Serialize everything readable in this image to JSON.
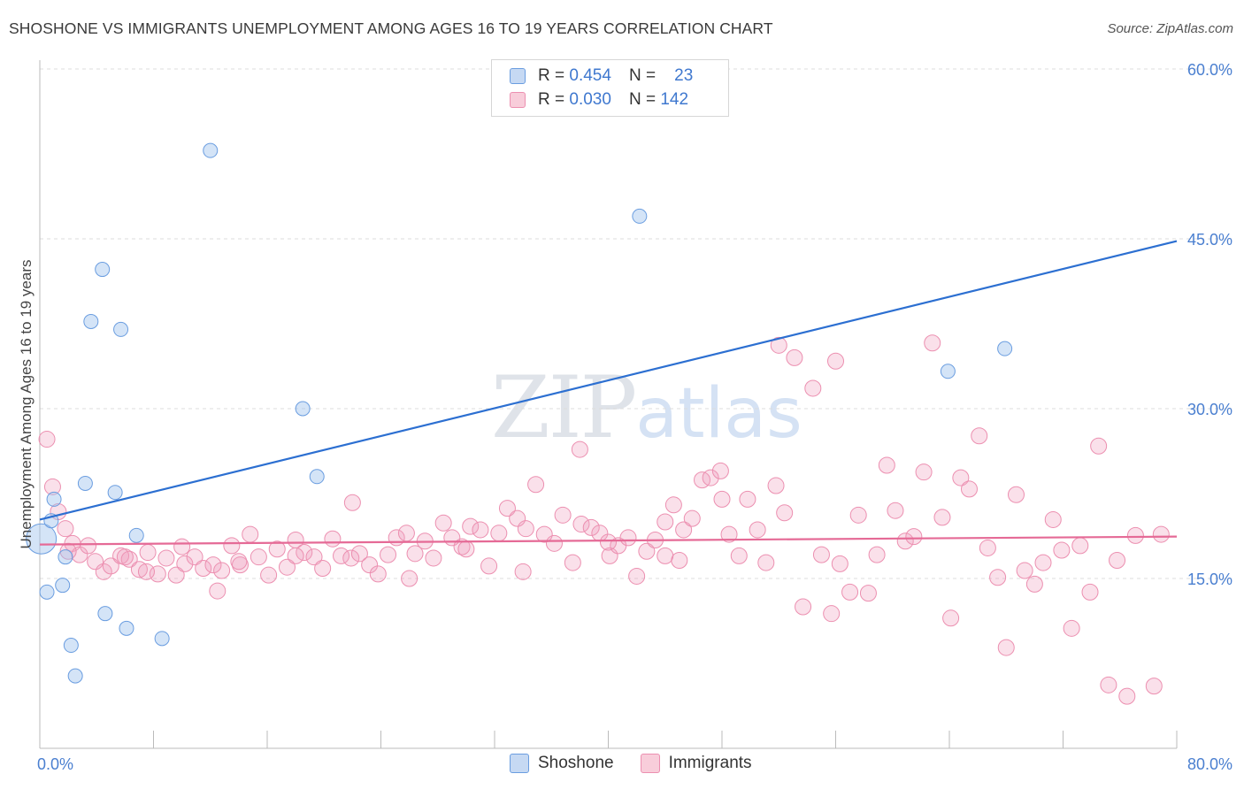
{
  "title": "SHOSHONE VS IMMIGRANTS UNEMPLOYMENT AMONG AGES 16 TO 19 YEARS CORRELATION CHART",
  "source": "Source: ZipAtlas.com",
  "watermark": {
    "zip": "ZIP",
    "atlas": "atlas"
  },
  "legend": {
    "rows": [
      {
        "r_label": "R =",
        "r_value": "0.454",
        "n_label": "N =",
        "n_value": "23"
      },
      {
        "r_label": "R =",
        "r_value": "0.030",
        "n_label": "N =",
        "n_value": "142"
      }
    ],
    "bottom": [
      "Shoshone",
      "Immigrants"
    ]
  },
  "chart_data": {
    "type": "scatter",
    "title": "SHOSHONE VS IMMIGRANTS UNEMPLOYMENT AMONG AGES 16 TO 19 YEARS CORRELATION CHART",
    "xlabel": "",
    "ylabel": "Unemployment Among Ages 16 to 19 years",
    "xlim": [
      0,
      80
    ],
    "ylim": [
      0,
      60
    ],
    "x_tick_labels": [
      "0.0%",
      "80.0%"
    ],
    "y_ticks": [
      15,
      30,
      45,
      60
    ],
    "y_tick_labels": [
      "15.0%",
      "30.0%",
      "45.0%",
      "60.0%"
    ],
    "colors": {
      "shoshone": "#6a9de0",
      "immigrants": "#ec8fb0",
      "shoshone_line": "#2c6fd1",
      "immigrants_line": "#e56a96"
    },
    "series": [
      {
        "name": "Shoshone",
        "trend": {
          "x": [
            0,
            80
          ],
          "y": [
            20.2,
            44.8
          ]
        },
        "points": [
          [
            0.1,
            18.5
          ],
          [
            0.5,
            13.8
          ],
          [
            1.0,
            22.0
          ],
          [
            1.6,
            14.4
          ],
          [
            1.8,
            16.9
          ],
          [
            2.2,
            9.1
          ],
          [
            2.5,
            6.4
          ],
          [
            3.2,
            23.4
          ],
          [
            4.4,
            42.3
          ],
          [
            3.6,
            37.7
          ],
          [
            5.7,
            37.0
          ],
          [
            4.6,
            11.9
          ],
          [
            5.3,
            22.6
          ],
          [
            6.1,
            10.6
          ],
          [
            6.8,
            18.8
          ],
          [
            8.6,
            9.7
          ],
          [
            12.0,
            52.8
          ],
          [
            18.5,
            30.0
          ],
          [
            19.5,
            24.0
          ],
          [
            0.8,
            20.1
          ],
          [
            42.2,
            47.0
          ],
          [
            63.9,
            33.3
          ],
          [
            67.9,
            35.3
          ]
        ]
      },
      {
        "name": "Immigrants",
        "trend": {
          "x": [
            0,
            80
          ],
          "y": [
            18.0,
            18.7
          ]
        },
        "points": [
          [
            0.5,
            27.3
          ],
          [
            0.9,
            23.1
          ],
          [
            1.3,
            20.9
          ],
          [
            1.8,
            19.4
          ],
          [
            2.3,
            18.1
          ],
          [
            2.8,
            17.1
          ],
          [
            3.4,
            17.9
          ],
          [
            3.9,
            16.5
          ],
          [
            4.5,
            15.6
          ],
          [
            5.0,
            16.1
          ],
          [
            5.7,
            17.0
          ],
          [
            6.3,
            16.7
          ],
          [
            7.0,
            15.8
          ],
          [
            7.6,
            17.3
          ],
          [
            8.3,
            15.4
          ],
          [
            8.9,
            16.8
          ],
          [
            9.6,
            15.3
          ],
          [
            10.2,
            16.3
          ],
          [
            10.9,
            16.9
          ],
          [
            11.5,
            15.9
          ],
          [
            12.2,
            16.2
          ],
          [
            12.8,
            15.7
          ],
          [
            13.5,
            17.9
          ],
          [
            14.1,
            16.2
          ],
          [
            14.8,
            18.9
          ],
          [
            15.4,
            16.9
          ],
          [
            16.1,
            15.3
          ],
          [
            16.7,
            17.6
          ],
          [
            17.4,
            16.0
          ],
          [
            18.0,
            18.4
          ],
          [
            18.6,
            17.3
          ],
          [
            19.3,
            16.9
          ],
          [
            19.9,
            15.9
          ],
          [
            20.6,
            18.5
          ],
          [
            21.2,
            17.0
          ],
          [
            21.9,
            16.8
          ],
          [
            22.5,
            17.2
          ],
          [
            23.2,
            16.2
          ],
          [
            23.8,
            15.4
          ],
          [
            24.5,
            17.1
          ],
          [
            25.1,
            18.6
          ],
          [
            25.8,
            19.0
          ],
          [
            26.4,
            17.2
          ],
          [
            27.1,
            18.3
          ],
          [
            27.7,
            16.8
          ],
          [
            28.4,
            19.9
          ],
          [
            29.0,
            18.6
          ],
          [
            29.7,
            17.8
          ],
          [
            30.3,
            19.6
          ],
          [
            31.0,
            19.3
          ],
          [
            31.6,
            16.1
          ],
          [
            32.3,
            19.0
          ],
          [
            32.9,
            21.2
          ],
          [
            33.6,
            20.3
          ],
          [
            34.2,
            19.4
          ],
          [
            34.9,
            23.3
          ],
          [
            35.5,
            18.9
          ],
          [
            36.2,
            18.1
          ],
          [
            36.8,
            20.6
          ],
          [
            37.5,
            16.4
          ],
          [
            38.1,
            19.8
          ],
          [
            38.8,
            19.5
          ],
          [
            39.4,
            19.0
          ],
          [
            40.1,
            17.0
          ],
          [
            40.7,
            17.9
          ],
          [
            41.4,
            18.6
          ],
          [
            42.0,
            15.2
          ],
          [
            42.7,
            17.4
          ],
          [
            43.3,
            18.4
          ],
          [
            44.0,
            17.0
          ],
          [
            44.6,
            21.5
          ],
          [
            45.3,
            19.3
          ],
          [
            45.9,
            20.3
          ],
          [
            46.6,
            23.7
          ],
          [
            47.2,
            23.9
          ],
          [
            47.9,
            24.5
          ],
          [
            48.5,
            18.9
          ],
          [
            49.2,
            17.0
          ],
          [
            49.8,
            22.0
          ],
          [
            50.5,
            19.3
          ],
          [
            51.1,
            16.4
          ],
          [
            51.8,
            23.2
          ],
          [
            52.4,
            20.8
          ],
          [
            53.1,
            34.5
          ],
          [
            53.7,
            12.5
          ],
          [
            54.4,
            31.8
          ],
          [
            55.0,
            17.1
          ],
          [
            55.7,
            11.9
          ],
          [
            56.3,
            16.3
          ],
          [
            57.0,
            13.8
          ],
          [
            57.6,
            20.6
          ],
          [
            58.3,
            13.7
          ],
          [
            58.9,
            17.1
          ],
          [
            59.6,
            25.0
          ],
          [
            60.2,
            21.0
          ],
          [
            60.9,
            18.3
          ],
          [
            61.5,
            18.7
          ],
          [
            62.2,
            24.4
          ],
          [
            62.8,
            35.8
          ],
          [
            63.5,
            20.4
          ],
          [
            64.1,
            11.5
          ],
          [
            64.8,
            23.9
          ],
          [
            65.4,
            22.9
          ],
          [
            66.1,
            27.6
          ],
          [
            66.7,
            17.7
          ],
          [
            67.4,
            15.1
          ],
          [
            68.0,
            8.9
          ],
          [
            68.7,
            22.4
          ],
          [
            69.3,
            15.7
          ],
          [
            70.0,
            14.5
          ],
          [
            70.6,
            16.4
          ],
          [
            71.3,
            20.2
          ],
          [
            71.9,
            17.5
          ],
          [
            72.6,
            10.6
          ],
          [
            73.2,
            17.9
          ],
          [
            73.9,
            13.8
          ],
          [
            74.5,
            26.7
          ],
          [
            75.2,
            5.6
          ],
          [
            75.8,
            16.6
          ],
          [
            76.5,
            4.6
          ],
          [
            77.1,
            18.8
          ],
          [
            78.4,
            5.5
          ],
          [
            78.9,
            18.9
          ],
          [
            44.0,
            20.0
          ],
          [
            45.0,
            16.6
          ],
          [
            38.0,
            26.4
          ],
          [
            34.0,
            15.6
          ],
          [
            30.0,
            17.6
          ],
          [
            26.0,
            15.0
          ],
          [
            22.0,
            21.7
          ],
          [
            18.0,
            17.0
          ],
          [
            14.0,
            16.5
          ],
          [
            10.0,
            17.8
          ],
          [
            6.0,
            16.9
          ],
          [
            2.0,
            17.4
          ],
          [
            40.0,
            18.2
          ],
          [
            56.0,
            34.2
          ],
          [
            52.0,
            35.6
          ],
          [
            12.5,
            13.9
          ],
          [
            7.5,
            15.6
          ],
          [
            48.0,
            22.0
          ]
        ]
      }
    ]
  }
}
